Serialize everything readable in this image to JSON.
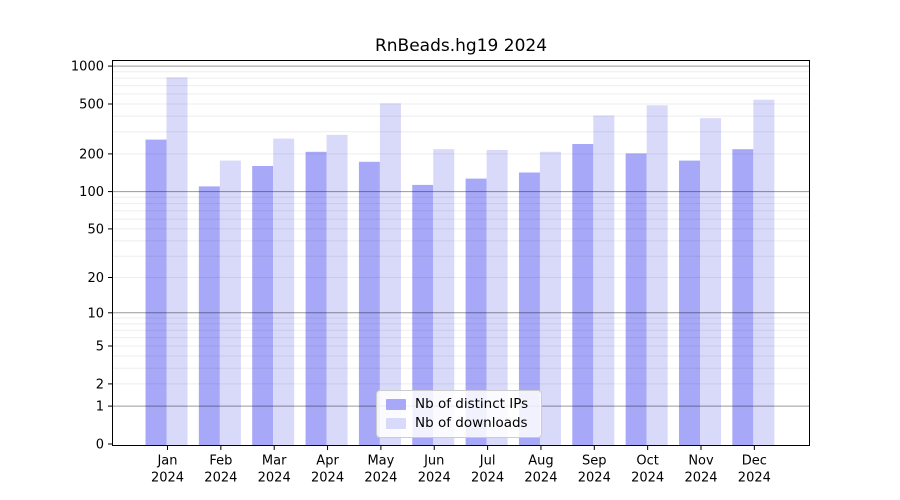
{
  "chart_data": {
    "type": "bar",
    "title": "RnBeads.hg19 2024",
    "categories": [
      "Jan\n2024",
      "Feb\n2024",
      "Mar\n2024",
      "Apr\n2024",
      "May\n2024",
      "Jun\n2024",
      "Jul\n2024",
      "Aug\n2024",
      "Sep\n2024",
      "Oct\n2024",
      "Nov\n2024",
      "Dec\n2024"
    ],
    "series": [
      {
        "name": "Nb of distinct IPs",
        "color": "#a8a8f8",
        "values": [
          260,
          110,
          160,
          208,
          173,
          113,
          127,
          142,
          240,
          202,
          177,
          218
        ]
      },
      {
        "name": "Nb of downloads",
        "color": "#d9d9fa",
        "values": [
          815,
          177,
          265,
          284,
          505,
          218,
          215,
          208,
          405,
          488,
          385,
          540
        ]
      }
    ],
    "yscale": "log1p",
    "yticks": [
      0,
      1,
      2,
      5,
      10,
      20,
      50,
      100,
      200,
      500,
      1000
    ],
    "ylim": [
      0,
      1100
    ],
    "xlabel": "",
    "ylabel": "",
    "grid": "horizontal-log",
    "legend_position": "bottom-center",
    "colors": {
      "frame": "#000000",
      "grid_minor": "rgba(0,0,0,0.07)",
      "grid_major": "rgba(0,0,0,0.40)",
      "background": "#ffffff"
    }
  }
}
